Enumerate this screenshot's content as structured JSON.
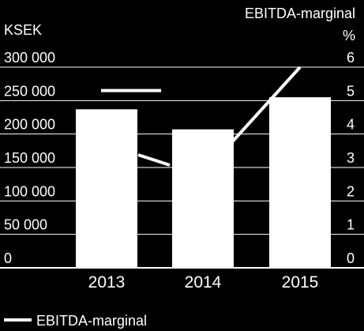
{
  "chart_data": {
    "type": "bar",
    "categories": [
      "2013",
      "2014",
      "2015"
    ],
    "series": [
      {
        "name": "",
        "type": "bar",
        "axis": "left",
        "values": [
          237000,
          207000,
          255000
        ]
      },
      {
        "name": "EBITDA-marginal",
        "type": "line",
        "axis": "right",
        "values": [
          null,
          2.8,
          6.0
        ]
      }
    ],
    "left_axis": {
      "label": "KSEK",
      "ylim": [
        0,
        300000
      ],
      "ticks": [
        "0",
        "50 000",
        "100 000",
        "150 000",
        "200 000",
        "250 000",
        "300 000"
      ]
    },
    "right_axis": {
      "label_line1": "EBITDA-marginal",
      "label_line2": "%",
      "ylim": [
        0,
        6
      ],
      "ticks": [
        "0",
        "1",
        "2",
        "3",
        "4",
        "5",
        "6"
      ]
    },
    "legend": {
      "label": "EBITDA-marginal",
      "placement": "bottom-left"
    },
    "annotation_2013_marker": 5.3,
    "grid": true,
    "colors": {
      "background": "#000000",
      "bars": "#ffffff",
      "line": "#ffffff",
      "grid": "#ffffff"
    }
  }
}
